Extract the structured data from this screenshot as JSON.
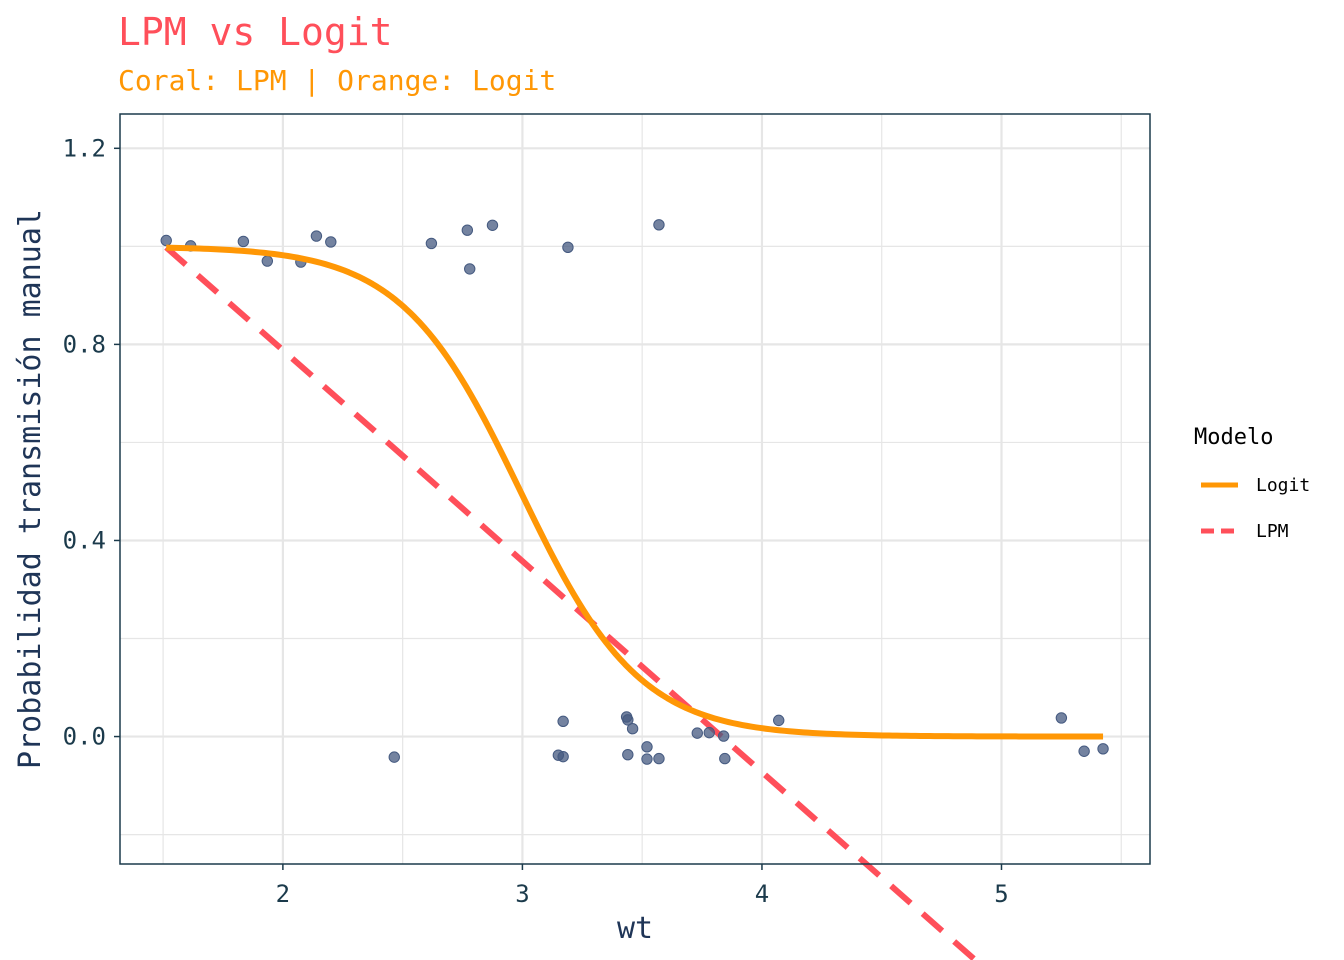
{
  "chart_data": {
    "type": "scatter",
    "title": "LPM vs Logit",
    "subtitle": "Coral: LPM | Orange: Logit",
    "xlabel": "wt",
    "ylabel": "Probabilidad transmisión manual",
    "xlim": [
      1.32,
      5.62
    ],
    "ylim": [
      -0.26,
      1.27
    ],
    "x_ticks": [
      2,
      3,
      4,
      5
    ],
    "x_tick_labels": [
      "2",
      "3",
      "4",
      "5"
    ],
    "y_ticks": [
      0.0,
      0.4,
      0.8,
      1.2
    ],
    "y_tick_labels": [
      "0.0",
      "0.4",
      "0.8",
      "1.2"
    ],
    "y_minor_ticks": [
      -0.2,
      0.2,
      0.6,
      1.0
    ],
    "grid": true,
    "legend": {
      "title": "Modelo",
      "placement": "right",
      "entries": [
        {
          "label": "Logit",
          "color": "#ff9705",
          "linestyle": "solid"
        },
        {
          "label": "LPM",
          "color": "#ff4f5a",
          "linestyle": "dashed"
        }
      ]
    },
    "points": {
      "color": "#455a80",
      "values": [
        [
          1.513,
          1.012
        ],
        [
          1.615,
          1.001
        ],
        [
          1.835,
          1.01
        ],
        [
          1.935,
          0.97
        ],
        [
          2.075,
          0.968
        ],
        [
          2.14,
          1.021
        ],
        [
          2.2,
          1.009
        ],
        [
          2.465,
          -0.042
        ],
        [
          2.62,
          1.006
        ],
        [
          2.77,
          1.033
        ],
        [
          2.78,
          0.954
        ],
        [
          2.875,
          1.043
        ],
        [
          3.15,
          -0.038
        ],
        [
          3.17,
          -0.041
        ],
        [
          3.17,
          0.031
        ],
        [
          3.19,
          0.998
        ],
        [
          3.435,
          0.04
        ],
        [
          3.44,
          0.034
        ],
        [
          3.44,
          -0.037
        ],
        [
          3.46,
          0.016
        ],
        [
          3.52,
          -0.046
        ],
        [
          3.52,
          -0.021
        ],
        [
          3.57,
          1.044
        ],
        [
          3.57,
          -0.045
        ],
        [
          3.73,
          0.007
        ],
        [
          3.78,
          0.008
        ],
        [
          3.84,
          0.001
        ],
        [
          3.845,
          -0.045
        ],
        [
          4.07,
          0.033
        ],
        [
          5.25,
          0.038
        ],
        [
          5.345,
          -0.03
        ],
        [
          5.424,
          -0.025
        ]
      ]
    },
    "series": [
      {
        "name": "Logit",
        "color": "#ff9705",
        "model": "logistic",
        "intercept": 12.04,
        "slope": -4.024,
        "x_range": [
          1.513,
          5.424
        ]
      },
      {
        "name": "LPM",
        "color": "#ff4f5a",
        "model": "linear",
        "intercept": 1.649,
        "slope": -0.4304,
        "x_range": [
          1.513,
          4.9
        ]
      }
    ]
  },
  "colors": {
    "title": "#ff4f5a",
    "subtitle": "#ff9705",
    "panel_border": "#1b3a4b",
    "grid": "#e6e6e6",
    "text": "#1b3a4b"
  }
}
